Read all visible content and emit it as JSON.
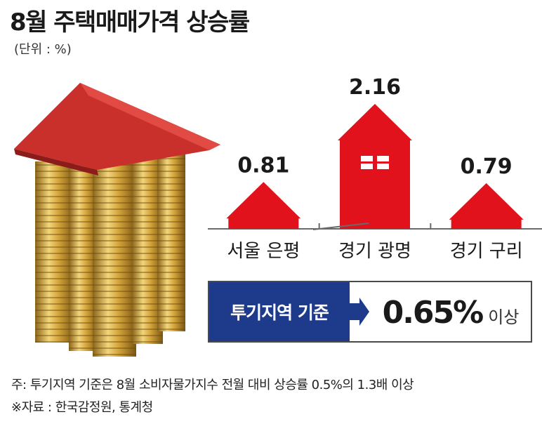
{
  "title": "8월 주택매매가격 상승률",
  "unit_label": "(단위 : %)",
  "chart_data": {
    "type": "bar",
    "title": "8월 주택매매가격 상승률",
    "unit": "%",
    "categories": [
      "서울 은평",
      "경기 광명",
      "경기 구리"
    ],
    "values": [
      0.81,
      2.16,
      0.79
    ],
    "value_labels": [
      "0.81",
      "2.16",
      "0.79"
    ],
    "bar_color": "#e1121b",
    "mark_shape": "house"
  },
  "benchmark": {
    "label": "투기지역 기준",
    "value": "0.65%",
    "suffix": "이상",
    "label_bg": "#1e3a8a"
  },
  "notes": {
    "note": "주: 투기지역 기준은 8월 소비자물가지수 전월 대비 상승률 0.5%의 1.3배 이상",
    "source": "※자료 : 한국감정원, 통계청"
  }
}
